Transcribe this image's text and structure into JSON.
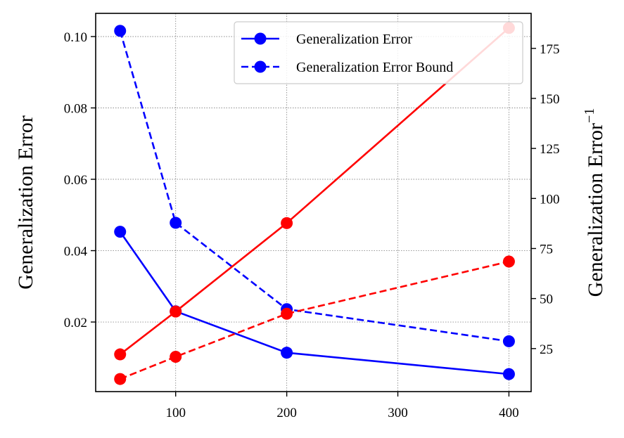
{
  "chart_data": {
    "type": "line",
    "title": "",
    "xlabel": "",
    "ylabel_left": "Generalization Error",
    "ylabel_right": "Generalization Error",
    "ylabel_right_superscript": "−1",
    "x": [
      50,
      100,
      200,
      400
    ],
    "xlim": [
      28,
      420
    ],
    "ylim_left": [
      0.0005,
      0.1065
    ],
    "ylim_right": [
      3.5,
      192.5
    ],
    "x_ticks": [
      100,
      200,
      300,
      400
    ],
    "x_tick_labels": [
      "100",
      "200",
      "300",
      "400"
    ],
    "y_left_ticks": [
      0.02,
      0.04,
      0.06,
      0.08,
      0.1
    ],
    "y_left_tick_labels": [
      "0.02",
      "0.04",
      "0.06",
      "0.08",
      "0.10"
    ],
    "y_right_ticks": [
      25,
      50,
      75,
      100,
      125,
      150,
      175
    ],
    "y_right_tick_labels": [
      "25",
      "50",
      "75",
      "100",
      "125",
      "150",
      "175"
    ],
    "grid": true,
    "legend_position": "top-right",
    "legend": [
      {
        "label": "Generalization Error",
        "style": "solid",
        "color": "#0000ff"
      },
      {
        "label": "Generalization Error Bound",
        "style": "dashed",
        "color": "#0000ff"
      }
    ],
    "series": [
      {
        "axis": "left",
        "color": "#0000ff",
        "style": "solid",
        "values": [
          0.0453,
          0.023,
          0.0114,
          0.0054
        ]
      },
      {
        "axis": "left",
        "color": "#0000ff",
        "style": "dashed",
        "values": [
          0.1016,
          0.0478,
          0.0236,
          0.0146
        ]
      },
      {
        "axis": "right",
        "color": "#ff0000",
        "style": "solid",
        "values": [
          22.1,
          43.5,
          87.7,
          185.2
        ]
      },
      {
        "axis": "right",
        "color": "#ff0000",
        "style": "dashed",
        "values": [
          9.8,
          20.9,
          42.4,
          68.5
        ]
      }
    ]
  }
}
